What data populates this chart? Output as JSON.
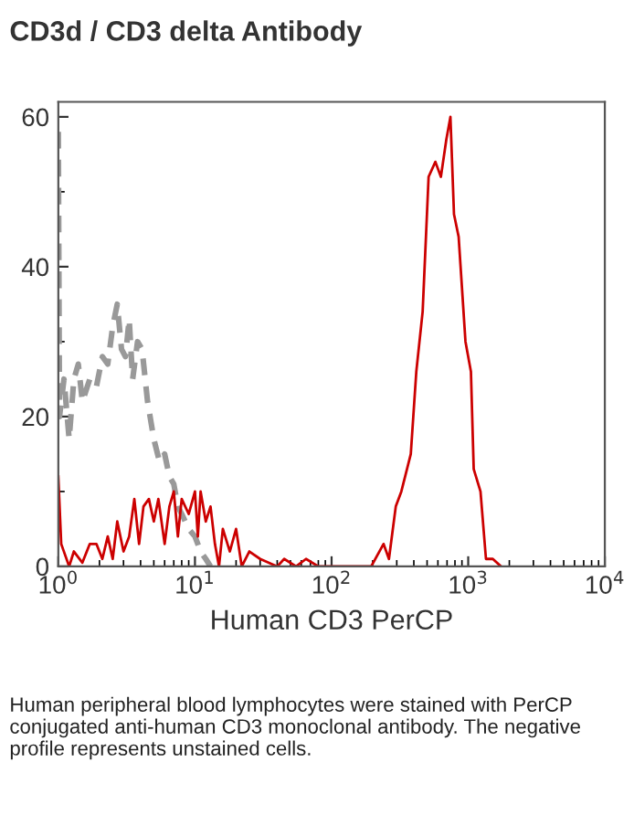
{
  "chart_data": {
    "type": "line",
    "title": "CD3d / CD3 delta Antibody",
    "xlabel": "Human CD3 PerCP",
    "log": "x",
    "xlim": [
      1,
      10000
    ],
    "ylim": [
      0,
      62
    ],
    "xticks": [
      {
        "value": 1,
        "label": "10$^{0}$"
      },
      {
        "value": 10,
        "label": "10$^{1}$"
      },
      {
        "value": 100,
        "label": "10$^{2}$"
      },
      {
        "value": 1000,
        "label": "10$^{3}$"
      },
      {
        "value": 10000,
        "label": "10$^{4}$"
      }
    ],
    "yticks": [
      0,
      20,
      40,
      60
    ],
    "grid": false,
    "marker": "none",
    "series": [
      {
        "color": "#999999",
        "line_style": "dashed",
        "x": [
          1.0,
          1.02,
          1.1,
          1.2,
          1.3,
          1.4,
          1.5,
          1.7,
          1.9,
          2.1,
          2.3,
          2.5,
          2.7,
          2.9,
          3.1,
          3.3,
          3.5,
          3.8,
          4.1,
          4.5,
          5,
          5.5,
          6,
          6.5,
          7,
          7.5,
          8,
          9,
          10,
          11,
          12,
          13
        ],
        "values": [
          58,
          20,
          25,
          17,
          25,
          27,
          22,
          25,
          24,
          28,
          27,
          32,
          35,
          29,
          28,
          33,
          25,
          30,
          29,
          22,
          17,
          14,
          15,
          12,
          11,
          8,
          7,
          5,
          4,
          2,
          1,
          0
        ]
      },
      {
        "color": "#cc0000",
        "line_style": "solid",
        "x": [
          1.0,
          1.05,
          1.2,
          1.3,
          1.5,
          1.7,
          1.9,
          2.1,
          2.3,
          2.5,
          2.7,
          3.0,
          3.3,
          3.6,
          3.9,
          4.2,
          4.6,
          5.0,
          5.4,
          6.0,
          6.5,
          7,
          7.5,
          8,
          9,
          10,
          10.5,
          11,
          12,
          13,
          14,
          15,
          16,
          18,
          20,
          22,
          25,
          30,
          40,
          45,
          55,
          65,
          80,
          195,
          240,
          263,
          295,
          324,
          380,
          417,
          464,
          513,
          575,
          631,
          692,
          741,
          787,
          851,
          955,
          1047,
          1097,
          1230,
          1349,
          1514,
          1738
        ],
        "values": [
          12,
          3,
          0,
          2,
          0.5,
          3,
          3,
          1,
          4,
          1,
          6,
          2,
          4,
          9,
          3,
          8,
          9,
          6,
          9,
          3,
          8,
          10,
          4,
          9,
          7,
          10,
          4,
          10,
          6,
          8,
          3,
          0,
          5,
          2,
          5,
          0,
          2,
          1,
          0,
          1,
          0,
          1,
          0,
          0,
          3,
          1,
          8,
          10,
          15,
          26,
          34,
          52,
          54,
          52,
          57,
          60,
          47,
          44,
          30,
          26,
          13,
          10,
          1,
          1,
          0
        ]
      }
    ],
    "annotations": [
      "Human peripheral blood lymphocytes were stained with PerCP conjugated anti-human CD3 monoclonal antibody. The negative profile represents unstained cells."
    ]
  }
}
